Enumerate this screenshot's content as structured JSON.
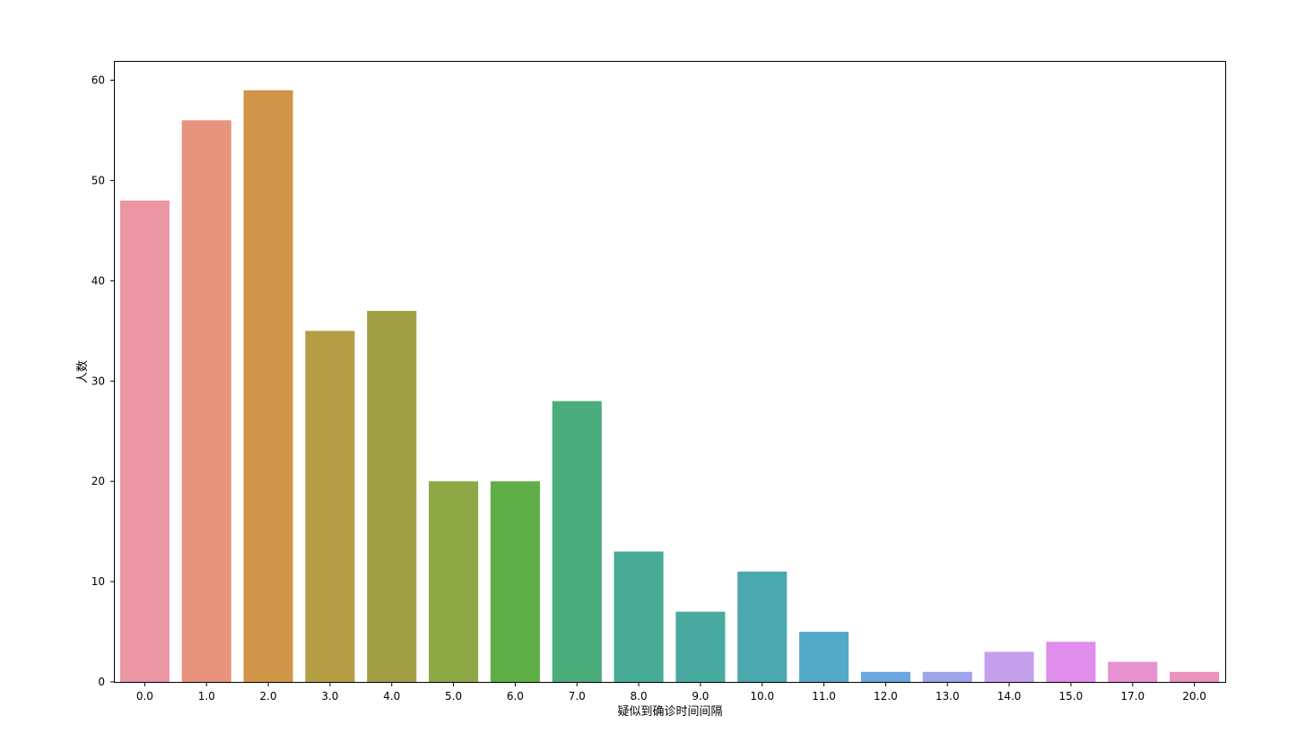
{
  "chart_data": {
    "type": "bar",
    "title": "",
    "xlabel": "疑似到确诊时间间隔",
    "ylabel": "人数",
    "categories": [
      "0.0",
      "1.0",
      "2.0",
      "3.0",
      "4.0",
      "5.0",
      "6.0",
      "7.0",
      "8.0",
      "9.0",
      "10.0",
      "11.0",
      "12.0",
      "13.0",
      "14.0",
      "15.0",
      "17.0",
      "20.0"
    ],
    "values": [
      48,
      56,
      59,
      35,
      37,
      20,
      20,
      28,
      13,
      7,
      11,
      5,
      1,
      1,
      3,
      4,
      2,
      1
    ],
    "colors": [
      "#ea96a3",
      "#e8937c",
      "#d19549",
      "#b59d46",
      "#a19f45",
      "#8da845",
      "#5fae47",
      "#4aad7b",
      "#48ab95",
      "#49aa9f",
      "#4aa8ae",
      "#52a9c8",
      "#6aa6e2",
      "#9ca4ec",
      "#c4a0ec",
      "#e08deb",
      "#e891d1",
      "#ea91be"
    ],
    "ylim": [
      0,
      62
    ],
    "yticks": [
      0,
      10,
      20,
      30,
      40,
      50,
      60
    ],
    "grid": false,
    "legend": "none"
  }
}
